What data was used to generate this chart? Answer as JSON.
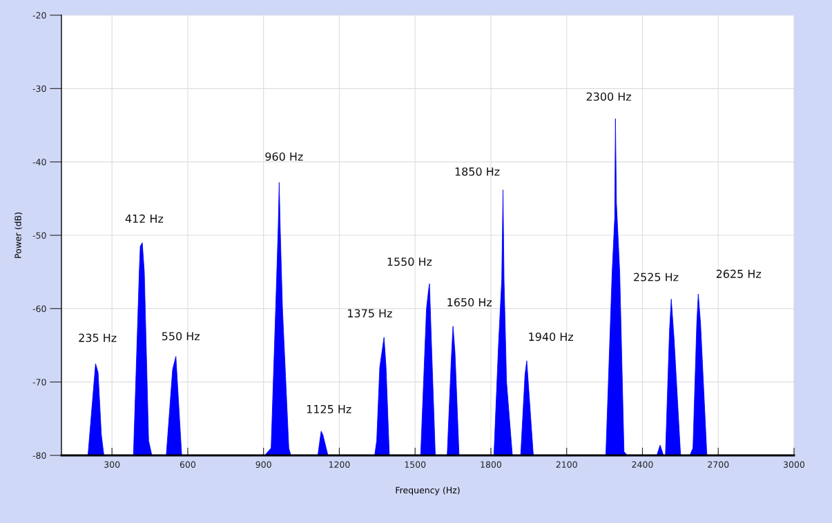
{
  "chart_data": {
    "type": "area",
    "xlabel": "Frequency (Hz)",
    "ylabel": "Power (dB)",
    "xlim": [
      100,
      3000
    ],
    "ylim": [
      -80,
      -20
    ],
    "xticks": [
      300,
      600,
      900,
      1200,
      1500,
      1800,
      2100,
      2400,
      2700,
      3000
    ],
    "yticks": [
      -80,
      -70,
      -60,
      -50,
      -40,
      -30,
      -20
    ],
    "grid": true,
    "series": [
      {
        "color": "#0000ff",
        "x": [
          100,
          205,
          235,
          245,
          258,
          268,
          385,
          408,
          412,
          420,
          428,
          445,
          458,
          515,
          540,
          553,
          576,
          905,
          930,
          948,
          958,
          962,
          966,
          975,
          1000,
          1008,
          1115,
          1128,
          1135,
          1155,
          1340,
          1348,
          1360,
          1377,
          1385,
          1398,
          1522,
          1545,
          1553,
          1557,
          1565,
          1580,
          1627,
          1643,
          1650,
          1658,
          1674,
          1812,
          1830,
          1843,
          1848,
          1852,
          1862,
          1885,
          1918,
          1935,
          1942,
          1968,
          2255,
          2280,
          2290,
          2293,
          2297,
          2310,
          2327,
          2340,
          2457,
          2470,
          2483,
          2491,
          2507,
          2514,
          2525,
          2551,
          2588,
          2600,
          2615,
          2621,
          2630,
          2655,
          3000
        ],
        "values": [
          -80,
          -80,
          -67.5,
          -68.7,
          -77.2,
          -80,
          -80,
          -55,
          -51.5,
          -51,
          -55,
          -78,
          -80,
          -80,
          -68.3,
          -66.5,
          -80,
          -80,
          -79,
          -60,
          -49,
          -42.8,
          -49,
          -60,
          -79,
          -80,
          -80,
          -76.7,
          -77.2,
          -80,
          -80,
          -78,
          -68,
          -63.9,
          -68,
          -80,
          -80,
          -60,
          -57.5,
          -56.6,
          -65,
          -80,
          -80,
          -67,
          -62.4,
          -66,
          -80,
          -80,
          -65,
          -56,
          -43.8,
          -56,
          -70,
          -80,
          -80,
          -69,
          -67.1,
          -80,
          -80,
          -55,
          -47.7,
          -34.1,
          -45.6,
          -55,
          -79.5,
          -80,
          -80,
          -78.6,
          -80,
          -80,
          -63,
          -58.7,
          -64,
          -80,
          -80,
          -79,
          -62,
          -58,
          -62,
          -80,
          -80
        ]
      }
    ],
    "annotations": [
      {
        "text": "235 Hz",
        "x": 235,
        "y": -67.5
      },
      {
        "text": "412 Hz",
        "x": 420,
        "y": -51
      },
      {
        "text": "550 Hz",
        "x": 553,
        "y": -66.5
      },
      {
        "text": "960 Hz",
        "x": 962,
        "y": -42.8
      },
      {
        "text": "1125 Hz",
        "x": 1128,
        "y": -76.7
      },
      {
        "text": "1375 Hz",
        "x": 1377,
        "y": -63.9
      },
      {
        "text": "1550 Hz",
        "x": 1557,
        "y": -56.6
      },
      {
        "text": "1650 Hz",
        "x": 1650,
        "y": -62.4
      },
      {
        "text": "1850 Hz",
        "x": 1848,
        "y": -43.8
      },
      {
        "text": "1940 Hz",
        "x": 1942,
        "y": -67.1
      },
      {
        "text": "2300 Hz",
        "x": 2293,
        "y": -34.1
      },
      {
        "text": "2525 Hz",
        "x": 2514,
        "y": -58.7
      },
      {
        "text": "2625 Hz",
        "x": 2621,
        "y": -58
      }
    ]
  }
}
